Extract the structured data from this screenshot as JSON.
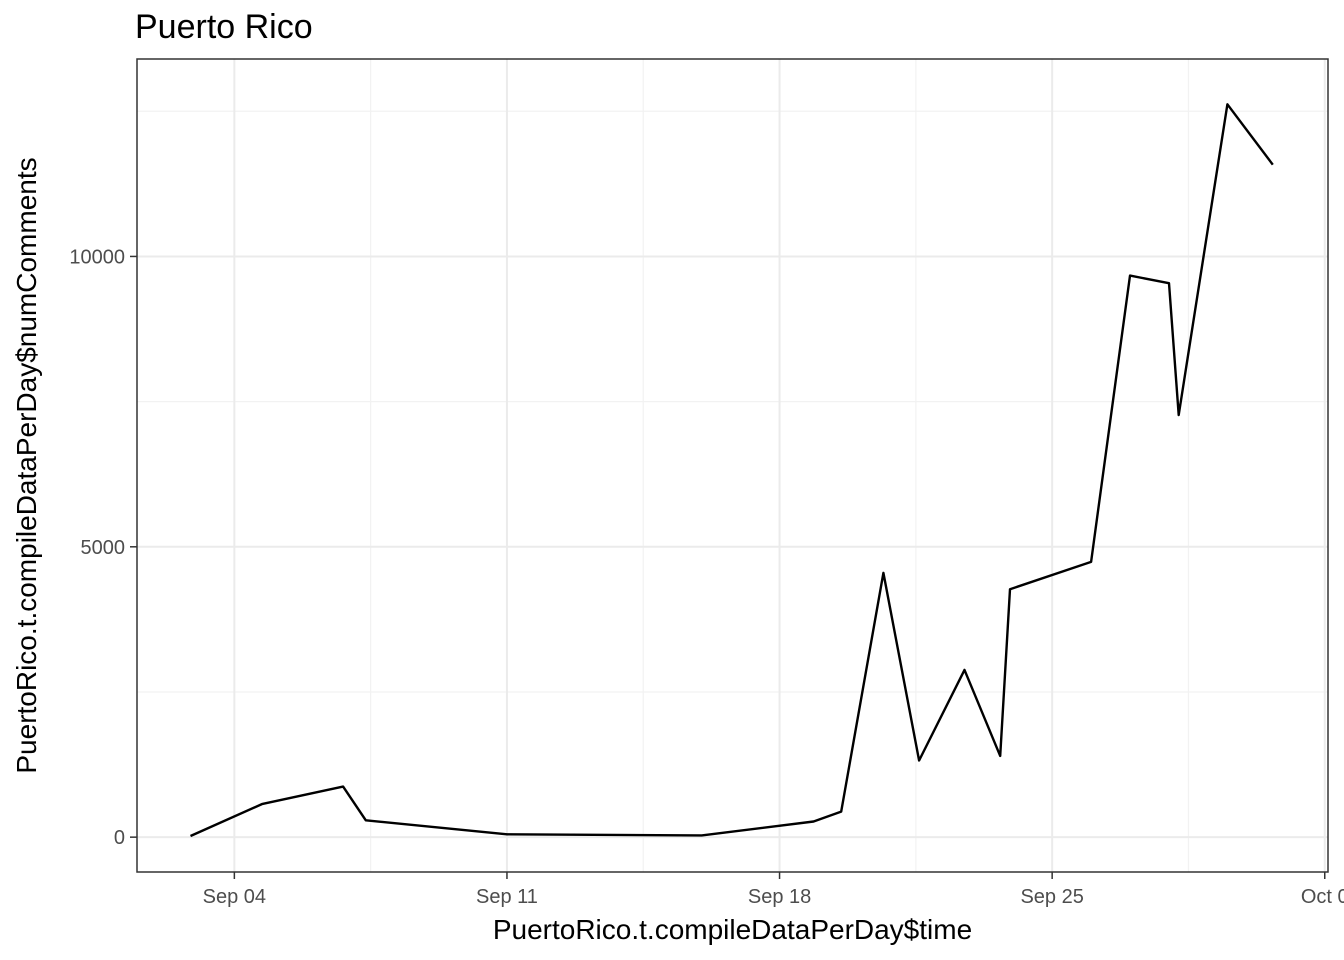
{
  "chart_data": {
    "type": "line",
    "title": "Puerto Rico",
    "xlabel": "PuertoRico.t.compileDataPerDay$time",
    "ylabel": "PuertoRico.t.compileDataPerDay$numComments",
    "x_type": "date",
    "x_ticks": [
      {
        "date": "2017-09-04",
        "label": "Sep 04"
      },
      {
        "date": "2017-09-11",
        "label": "Sep 11"
      },
      {
        "date": "2017-09-18",
        "label": "Sep 18"
      },
      {
        "date": "2017-09-25",
        "label": "Sep 25"
      },
      {
        "date": "2017-10-02",
        "label": "Oct 0"
      }
    ],
    "y_ticks": [
      0,
      5000,
      10000
    ],
    "xlim": [
      "2017-09-01T12:00",
      "2017-10-02T02:00"
    ],
    "ylim": [
      -600,
      13400
    ],
    "grid": true,
    "legend": "none",
    "series": [
      {
        "color": "#000000",
        "points": [
          {
            "x": "2017-09-02T21:00",
            "y": 20
          },
          {
            "x": "2017-09-04T17:00",
            "y": 570
          },
          {
            "x": "2017-09-06T19:00",
            "y": 870
          },
          {
            "x": "2017-09-07T09:00",
            "y": 290
          },
          {
            "x": "2017-09-11T00:00",
            "y": 50
          },
          {
            "x": "2017-09-16T00:00",
            "y": 30
          },
          {
            "x": "2017-09-18T21:00",
            "y": 270
          },
          {
            "x": "2017-09-19T14:00",
            "y": 440
          },
          {
            "x": "2017-09-20T16:00",
            "y": 4550
          },
          {
            "x": "2017-09-21T14:00",
            "y": 1320
          },
          {
            "x": "2017-09-22T18:00",
            "y": 2880
          },
          {
            "x": "2017-09-23T16:00",
            "y": 1400
          },
          {
            "x": "2017-09-23T22:00",
            "y": 4270
          },
          {
            "x": "2017-09-26T00:00",
            "y": 4740
          },
          {
            "x": "2017-09-27T00:00",
            "y": 9670
          },
          {
            "x": "2017-09-28T00:00",
            "y": 9540
          },
          {
            "x": "2017-09-28T06:00",
            "y": 7270
          },
          {
            "x": "2017-09-29T12:00",
            "y": 12620
          },
          {
            "x": "2017-09-30T16:00",
            "y": 11580
          }
        ]
      }
    ]
  }
}
